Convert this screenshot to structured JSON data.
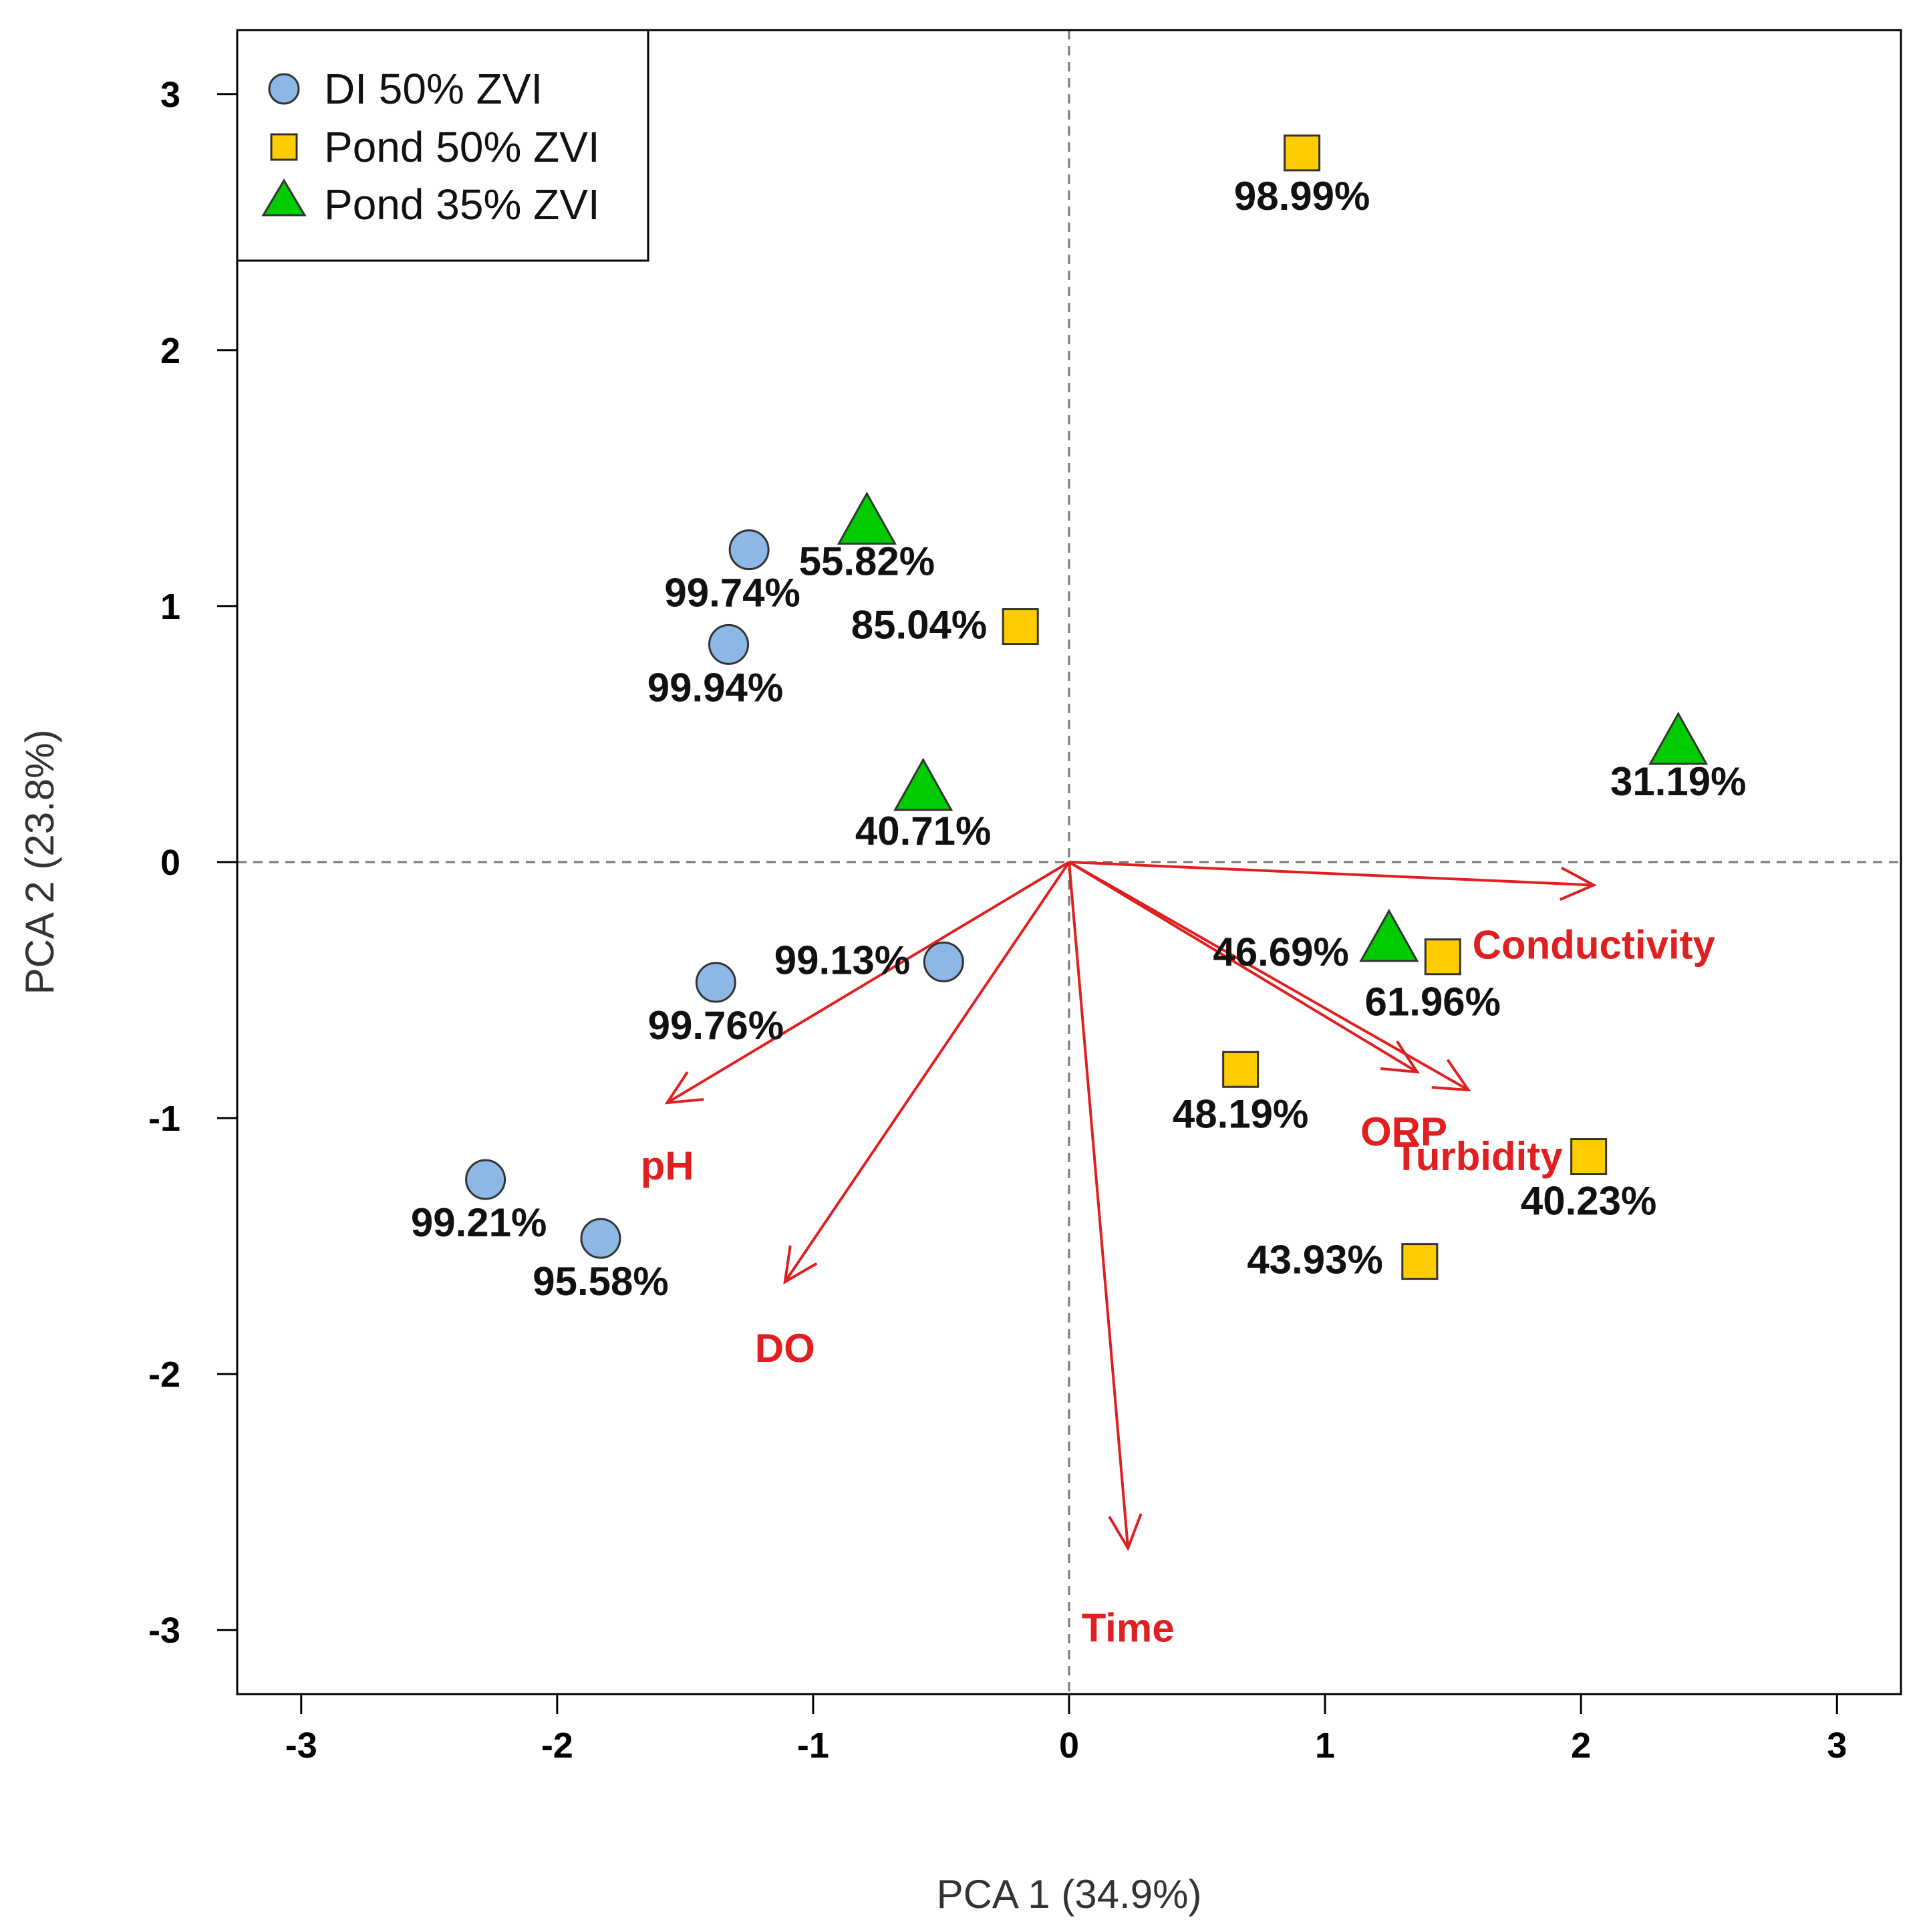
{
  "chart_data": {
    "type": "scatter",
    "title": "",
    "xlabel": "PCA 1 (34.9%)",
    "ylabel": "PCA 2 (23.8%)",
    "xlim": [
      -3.25,
      3.25
    ],
    "ylim": [
      -3.25,
      3.25
    ],
    "xticks": [
      -3,
      -2,
      -1,
      0,
      1,
      2,
      3
    ],
    "yticks": [
      -3,
      -2,
      -1,
      0,
      1,
      2,
      3
    ],
    "xtick_labels": [
      "-3",
      "-2",
      "-1",
      "0",
      "1",
      "2",
      "3"
    ],
    "ytick_labels": [
      "-3",
      "-2",
      "-1",
      "0",
      "1",
      "2",
      "3"
    ],
    "reference_lines": {
      "x": 0,
      "y": 0,
      "style": "dashed"
    },
    "legend_position": "top-left",
    "series": [
      {
        "name": "DI 50% ZVI",
        "marker": "circle",
        "color": "#8DB8E6",
        "points": [
          {
            "x": -1.25,
            "y": 1.22,
            "label": "99.74%"
          },
          {
            "x": -1.33,
            "y": 0.85,
            "label": "99.94%"
          },
          {
            "x": -0.49,
            "y": -0.39,
            "label": "99.13%"
          },
          {
            "x": -1.38,
            "y": -0.47,
            "label": "99.76%"
          },
          {
            "x": -2.28,
            "y": -1.24,
            "label": "99.21%"
          },
          {
            "x": -1.83,
            "y": -1.47,
            "label": "95.58%"
          }
        ]
      },
      {
        "name": "Pond 50% ZVI",
        "marker": "square",
        "color": "#FFCC00",
        "points": [
          {
            "x": 0.91,
            "y": 2.77,
            "label": "98.99%"
          },
          {
            "x": -0.19,
            "y": 0.92,
            "label": "85.04%"
          },
          {
            "x": 1.46,
            "y": -0.37,
            "label": "61.96%"
          },
          {
            "x": 0.67,
            "y": -0.81,
            "label": "48.19%"
          },
          {
            "x": 2.03,
            "y": -1.15,
            "label": "40.23%"
          },
          {
            "x": 1.37,
            "y": -1.56,
            "label": "43.93%"
          }
        ]
      },
      {
        "name": "Pond 35% ZVI",
        "marker": "triangle",
        "color": "#00CC00",
        "points": [
          {
            "x": -0.79,
            "y": 1.33,
            "label": "55.82%"
          },
          {
            "x": -0.57,
            "y": 0.29,
            "label": "40.71%"
          },
          {
            "x": 2.38,
            "y": 0.47,
            "label": "31.19%"
          },
          {
            "x": 1.25,
            "y": -0.3,
            "label": "46.69%"
          }
        ]
      }
    ],
    "loadings": {
      "color": "#E02020",
      "vectors": [
        {
          "name": "Conductivity",
          "x": 2.05,
          "y": -0.09
        },
        {
          "name": "ORP",
          "x": 1.36,
          "y": -0.82
        },
        {
          "name": "Turbidity",
          "x": 1.56,
          "y": -0.89
        },
        {
          "name": "Time",
          "x": 0.23,
          "y": -2.68
        },
        {
          "name": "pH",
          "x": -1.57,
          "y": -0.94
        },
        {
          "name": "DO",
          "x": -1.11,
          "y": -1.64
        }
      ]
    }
  }
}
